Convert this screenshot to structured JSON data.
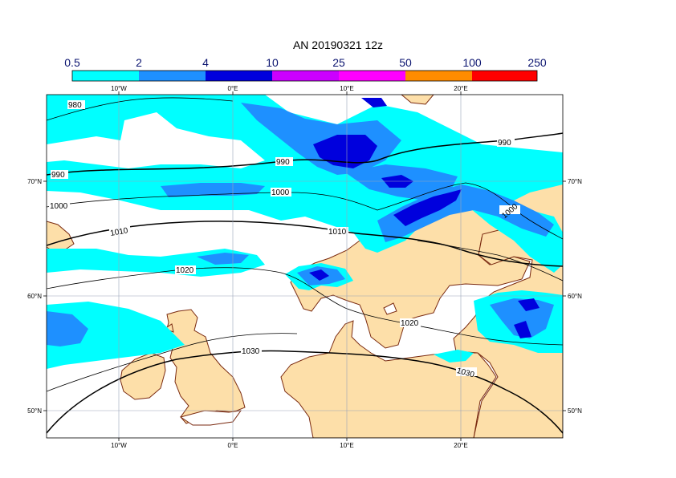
{
  "title": "AN  20190321 12z",
  "legend": {
    "levels": [
      "0.5",
      "2",
      "4",
      "10",
      "25",
      "50",
      "100",
      "250"
    ],
    "colors": [
      "#00ffff",
      "#1e90ff",
      "#0000dd",
      "#cc00ff",
      "#ff00ff",
      "#ff8c00",
      "#ff0000"
    ]
  },
  "axes": {
    "lon_top": [
      "10°W",
      "0°E",
      "10°E",
      "20°E"
    ],
    "lon_bottom": [
      "10°W",
      "0°E",
      "10°E",
      "20°E"
    ],
    "lat_left": [
      "70°N",
      "60°N",
      "50°N"
    ],
    "lat_right": [
      "70°N",
      "60°N",
      "50°N"
    ]
  },
  "isobars": {
    "labels": [
      "980",
      "990",
      "990",
      "990",
      "1000",
      "1000",
      "1000",
      "1010",
      "1010",
      "1020",
      "1020",
      "1030",
      "1030"
    ]
  },
  "colors": {
    "land": "#fddfa9",
    "coast": "#7a2a10",
    "sea": "#ffffff",
    "contour": "#000000"
  }
}
